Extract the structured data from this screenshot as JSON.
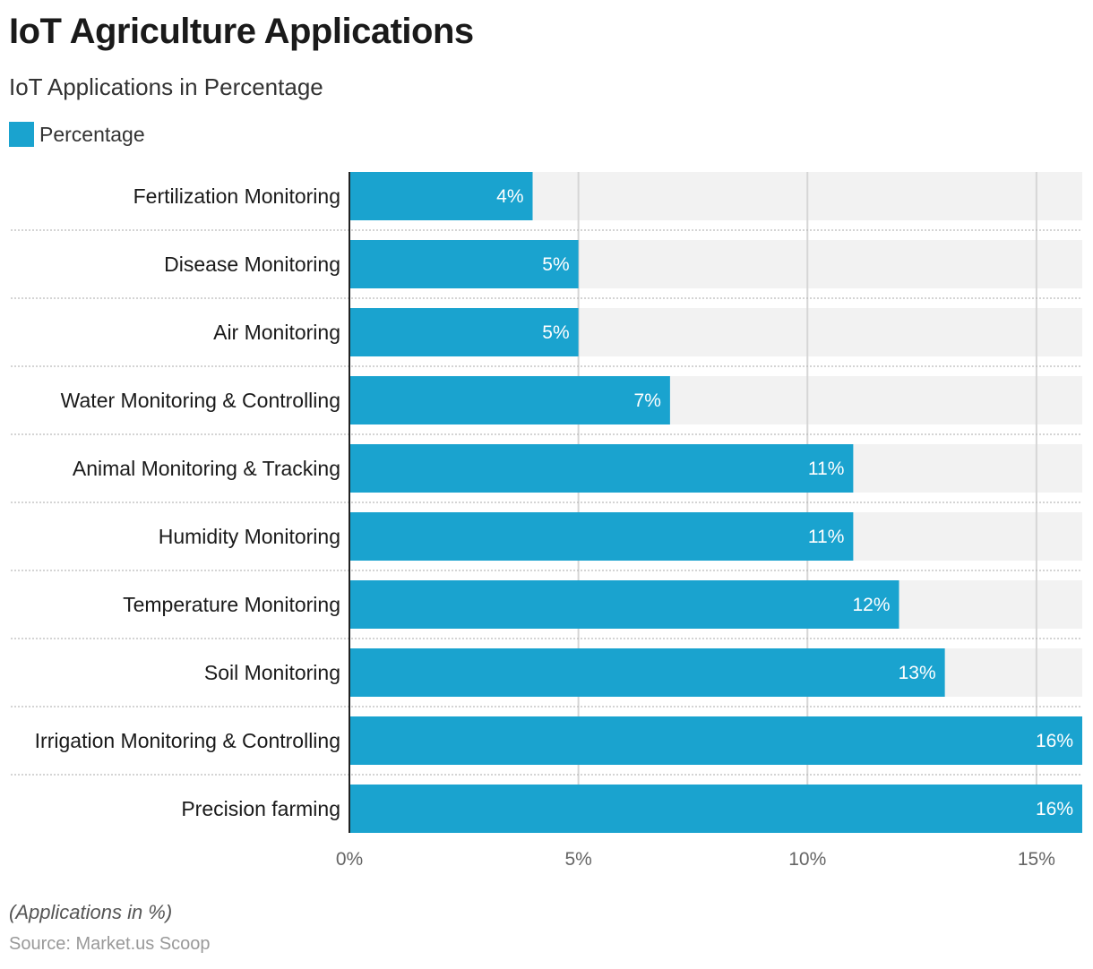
{
  "title": "IoT Agriculture Applications",
  "subtitle": "IoT Applications in Percentage",
  "footnote": "(Applications in %)",
  "source": "Source: Market.us Scoop",
  "colors": {
    "bar": "#1aa3cf",
    "track": "#f2f2f2",
    "grid": "#d6d6d6",
    "separator": "#bbbbbb"
  },
  "chart_data": {
    "type": "bar",
    "orientation": "horizontal",
    "title": "IoT Agriculture Applications",
    "subtitle": "IoT Applications in Percentage",
    "categories": [
      "Fertilization Monitoring",
      "Disease Monitoring",
      "Air Monitoring",
      "Water Monitoring & Controlling",
      "Animal Monitoring & Tracking",
      "Humidity Monitoring",
      "Temperature Monitoring",
      "Soil Monitoring",
      "Irrigation Monitoring & Controlling",
      "Precision farming"
    ],
    "series": [
      {
        "name": "Percentage",
        "values": [
          4,
          5,
          5,
          7,
          11,
          11,
          12,
          13,
          16,
          16
        ]
      }
    ],
    "data_labels": [
      "4%",
      "5%",
      "5%",
      "7%",
      "11%",
      "11%",
      "12%",
      "13%",
      "16%",
      "16%"
    ],
    "xlim": [
      0,
      16
    ],
    "xticks": [
      0,
      5,
      10,
      15
    ],
    "xtick_labels": [
      "0%",
      "5%",
      "10%",
      "15%"
    ],
    "grid": true,
    "legend": "top-left"
  }
}
